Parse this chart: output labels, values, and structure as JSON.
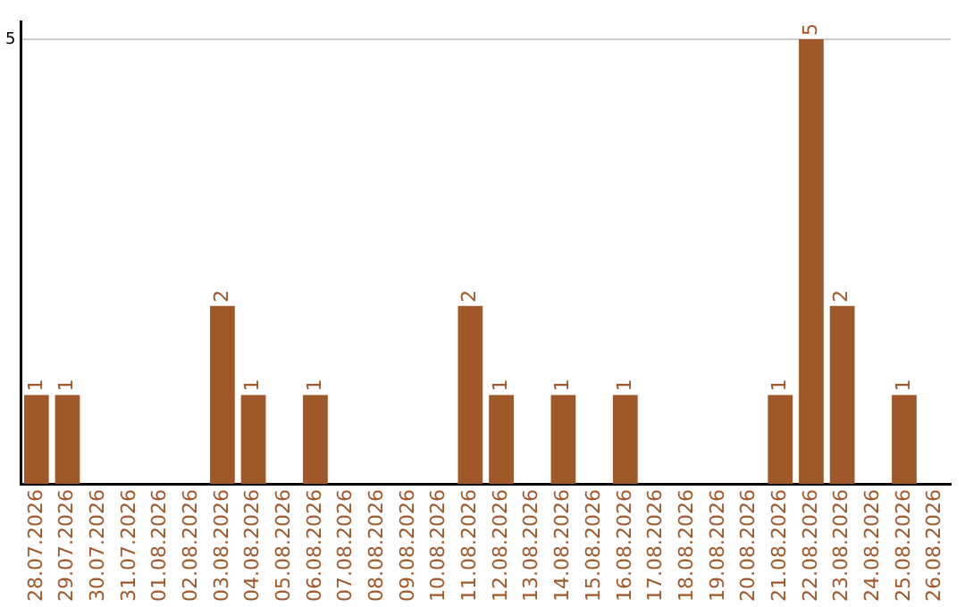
{
  "chart_data": {
    "type": "bar",
    "categories": [
      "28.07.2026",
      "29.07.2026",
      "30.07.2026",
      "31.07.2026",
      "01.08.2026",
      "02.08.2026",
      "03.08.2026",
      "04.08.2026",
      "05.08.2026",
      "06.08.2026",
      "07.08.2026",
      "08.08.2026",
      "09.08.2026",
      "10.08.2026",
      "11.08.2026",
      "12.08.2026",
      "13.08.2026",
      "14.08.2026",
      "15.08.2026",
      "16.08.2026",
      "17.08.2026",
      "18.08.2026",
      "19.08.2026",
      "20.08.2026",
      "21.08.2026",
      "22.08.2026",
      "23.08.2026",
      "24.08.2026",
      "25.08.2026",
      "26.08.2026"
    ],
    "values": [
      1,
      1,
      0,
      0,
      0,
      0,
      2,
      1,
      0,
      1,
      0,
      0,
      0,
      0,
      2,
      1,
      0,
      1,
      0,
      1,
      0,
      0,
      0,
      0,
      1,
      5,
      2,
      0,
      1,
      0
    ],
    "value_labels": [
      "1",
      "1",
      null,
      null,
      null,
      null,
      "2",
      "1",
      null,
      "1",
      null,
      null,
      null,
      null,
      "2",
      "1",
      null,
      "1",
      null,
      "1",
      null,
      null,
      null,
      null,
      "1",
      "5",
      "2",
      null,
      "1",
      null
    ],
    "color": "#a0572a",
    "ylim": [
      0,
      5.2
    ],
    "yticks": [
      5
    ],
    "grid": "y",
    "legend": false
  }
}
